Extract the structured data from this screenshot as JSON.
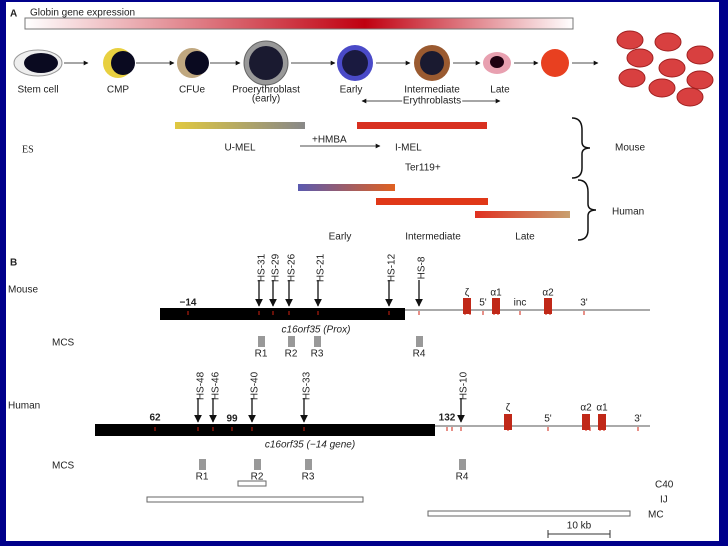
{
  "panel_a": {
    "label": "A",
    "expression_label": "Globin gene expression",
    "cells": [
      "Stem cell",
      "CMP",
      "CFUe",
      "Proerythroblast",
      "(early)",
      "Early",
      "Intermediate",
      "Late"
    ],
    "erythroblasts": "Erythroblasts",
    "mouse_lines": {
      "es": "ES",
      "u_mel": "U-MEL",
      "hmba": "+HMBA",
      "i_mel": "I-MEL",
      "ter119": "Ter119+",
      "label": "Mouse"
    },
    "human_lines": {
      "label": "Human",
      "stages": [
        "Early",
        "Intermediate",
        "Late"
      ]
    }
  },
  "panel_b": {
    "label": "B",
    "mouse": {
      "label": "Mouse",
      "hs_sites": [
        "HS-31",
        "HS-29",
        "HS-26",
        "HS-21",
        "HS-12",
        "HS-8"
      ],
      "position": "−14",
      "genes": [
        "ζ",
        "5'",
        "α1",
        "inc",
        "α2",
        "3'"
      ],
      "gene_label": "c16orf35 (Prox)",
      "mcs": "MCS",
      "regions": [
        "R1",
        "R2",
        "R3",
        "R4"
      ]
    },
    "human": {
      "label": "Human",
      "hs_sites": [
        "HS-48",
        "HS-46",
        "HS-40",
        "HS-33",
        "HS-10"
      ],
      "positions": [
        "62",
        "99",
        "132"
      ],
      "genes": [
        "ζ",
        "5'",
        "α2",
        "α1",
        "3'"
      ],
      "gene_label": "c16orf35 (−14 gene)",
      "mcs": "MCS",
      "regions": [
        "R1",
        "R2",
        "R3",
        "R4"
      ]
    },
    "clones": [
      "C40",
      "IJ",
      "MC"
    ],
    "scale": "10 kb"
  }
}
